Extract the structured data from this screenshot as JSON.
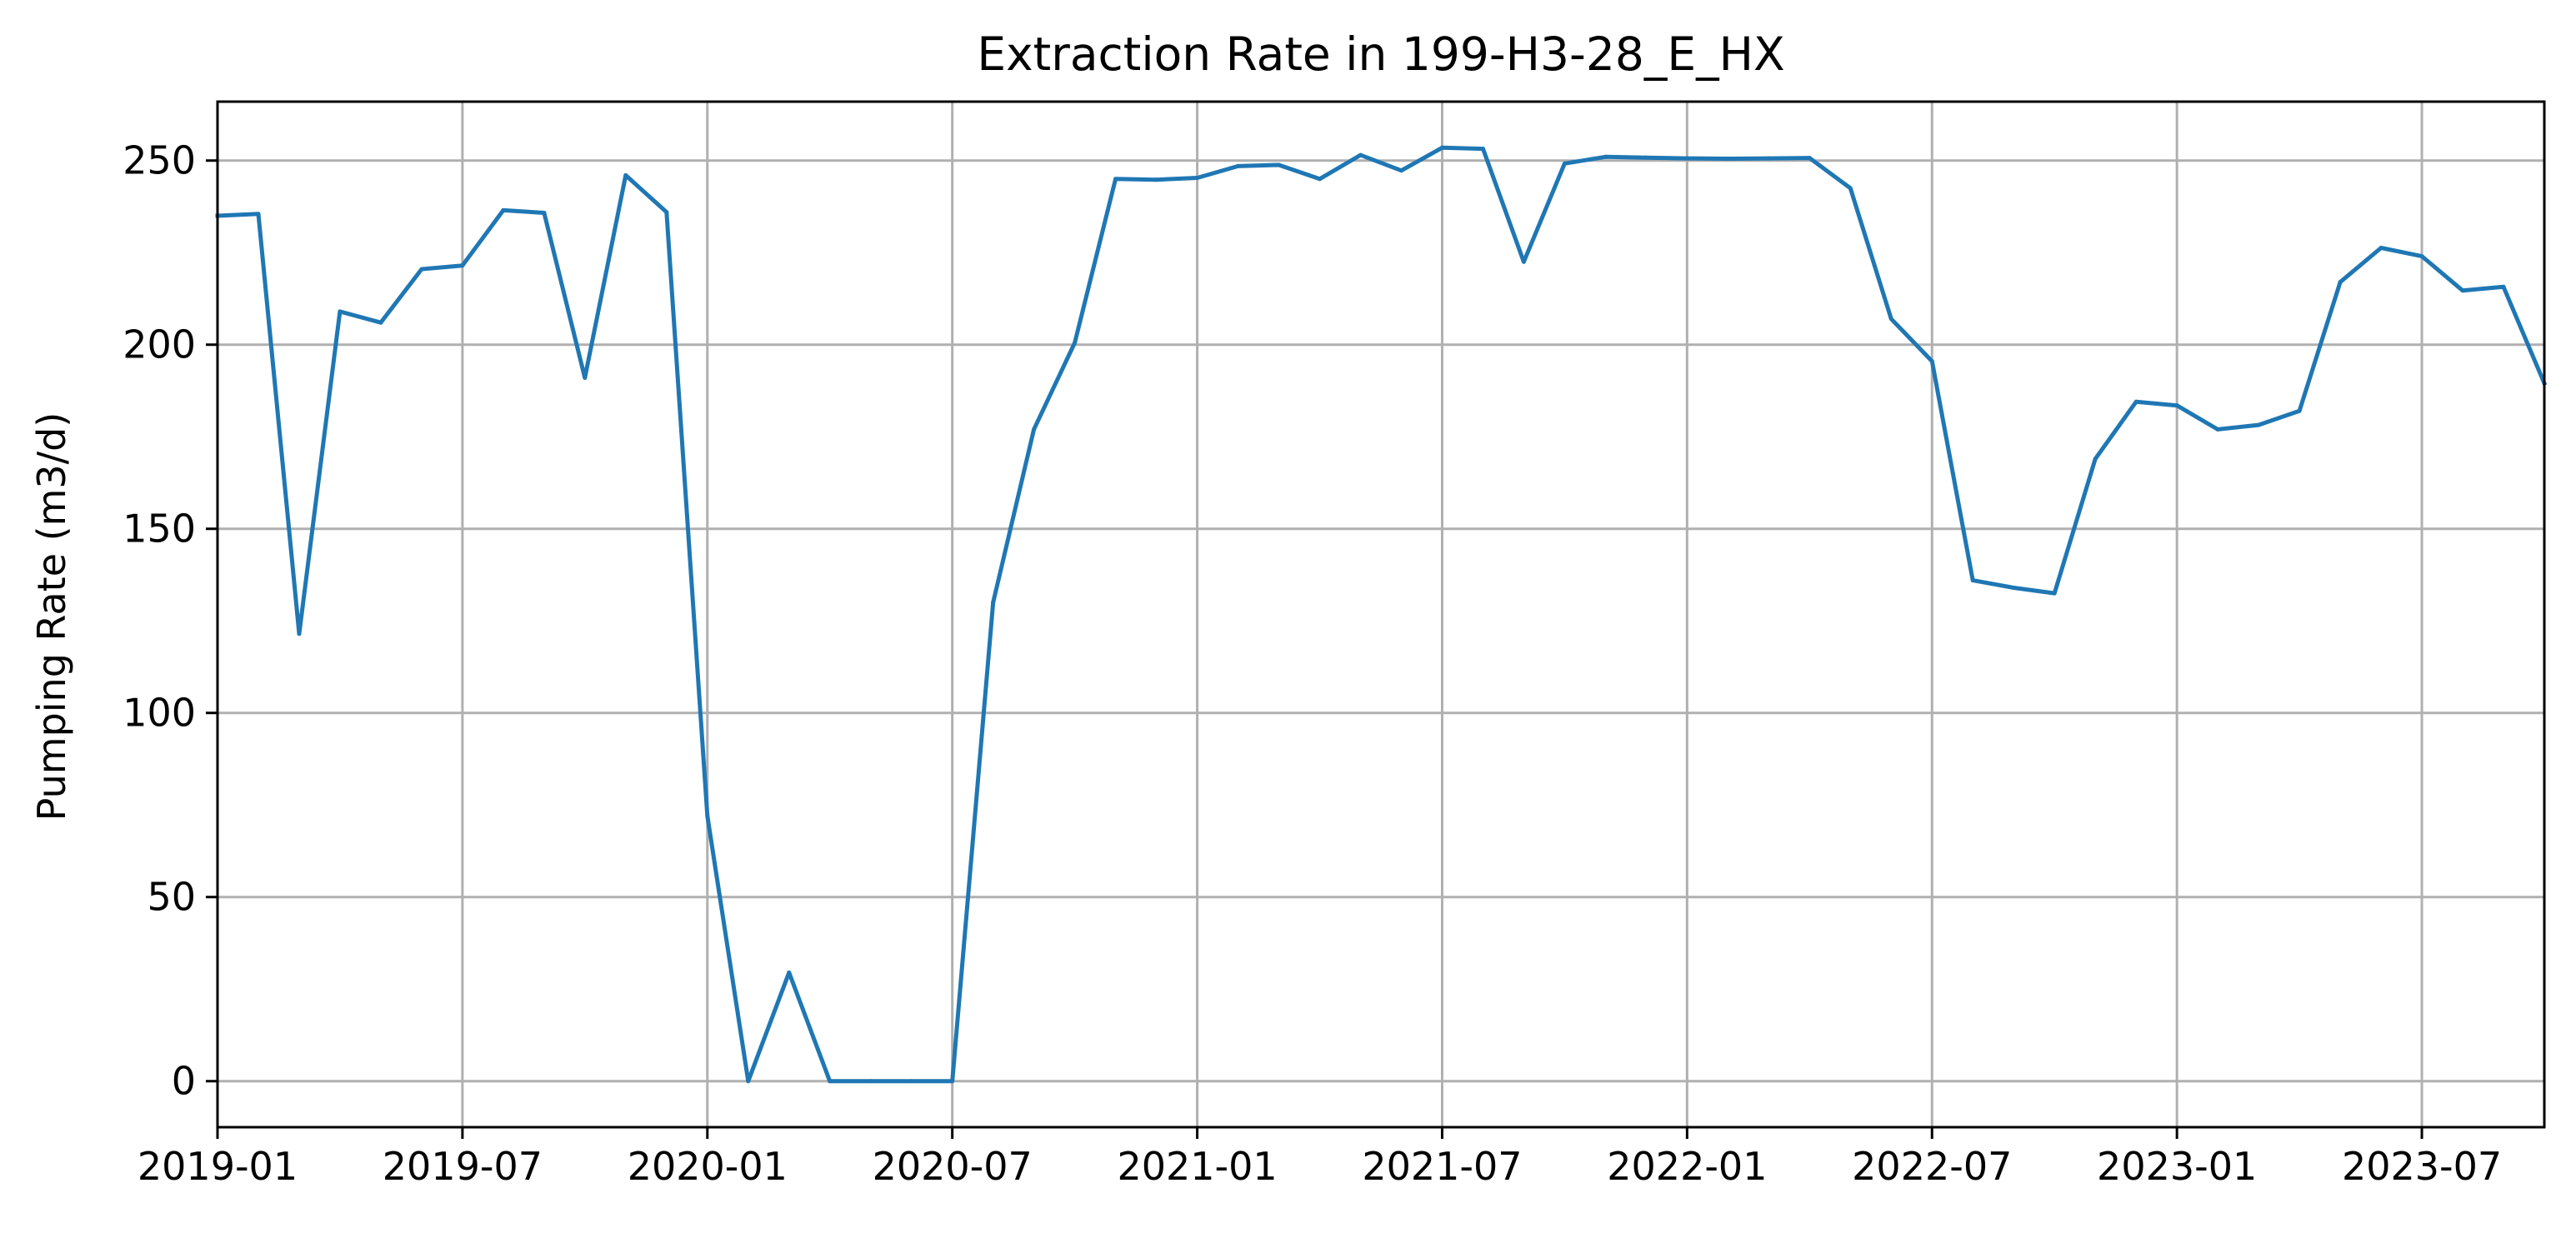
{
  "chart_data": {
    "type": "line",
    "title": "Extraction Rate in 199-H3-28_E_HX",
    "xlabel": "",
    "ylabel": "Pumping Rate (m3/d)",
    "xlim": [
      "2019-01",
      "2023-10"
    ],
    "ylim": [
      -12.5,
      266
    ],
    "xticks": [
      "2019-01",
      "2019-07",
      "2020-01",
      "2020-07",
      "2021-01",
      "2021-07",
      "2022-01",
      "2022-07",
      "2023-01",
      "2023-07"
    ],
    "yticks": [
      0,
      50,
      100,
      150,
      200,
      250
    ],
    "grid": true,
    "line_color": "#1f77b4",
    "x": [
      "2019-01",
      "2019-02",
      "2019-03",
      "2019-04",
      "2019-05",
      "2019-06",
      "2019-07",
      "2019-08",
      "2019-09",
      "2019-10",
      "2019-11",
      "2019-12",
      "2020-01",
      "2020-02",
      "2020-03",
      "2020-04",
      "2020-05",
      "2020-06",
      "2020-07",
      "2020-08",
      "2020-09",
      "2020-10",
      "2020-11",
      "2020-12",
      "2021-01",
      "2021-02",
      "2021-03",
      "2021-04",
      "2021-05",
      "2021-06",
      "2021-07",
      "2021-08",
      "2021-09",
      "2021-10",
      "2021-11",
      "2021-12",
      "2022-01",
      "2022-02",
      "2022-03",
      "2022-04",
      "2022-05",
      "2022-06",
      "2022-07",
      "2022-08",
      "2022-09",
      "2022-10",
      "2022-11",
      "2022-12",
      "2023-01",
      "2023-02",
      "2023-03",
      "2023-04",
      "2023-05",
      "2023-06",
      "2023-07",
      "2023-08",
      "2023-09",
      "2023-10"
    ],
    "series": [
      {
        "values": [
          235,
          235.5,
          121.5,
          209,
          206,
          220.5,
          221.5,
          236.5,
          235.8,
          191,
          246,
          236,
          72,
          0,
          29.5,
          0,
          0,
          0,
          0,
          130,
          177,
          200.5,
          245,
          244.8,
          245.3,
          248.5,
          248.8,
          245,
          251.5,
          247.3,
          253.5,
          253.2,
          222.5,
          249.2,
          251,
          250.8,
          250.6,
          250.5,
          250.6,
          250.7,
          242.5,
          207,
          195.5,
          136,
          134,
          132.5,
          169,
          184.5,
          183.5,
          177,
          178.2,
          182,
          217,
          226.3,
          224,
          214.7,
          215.7,
          189.5
        ]
      }
    ]
  }
}
